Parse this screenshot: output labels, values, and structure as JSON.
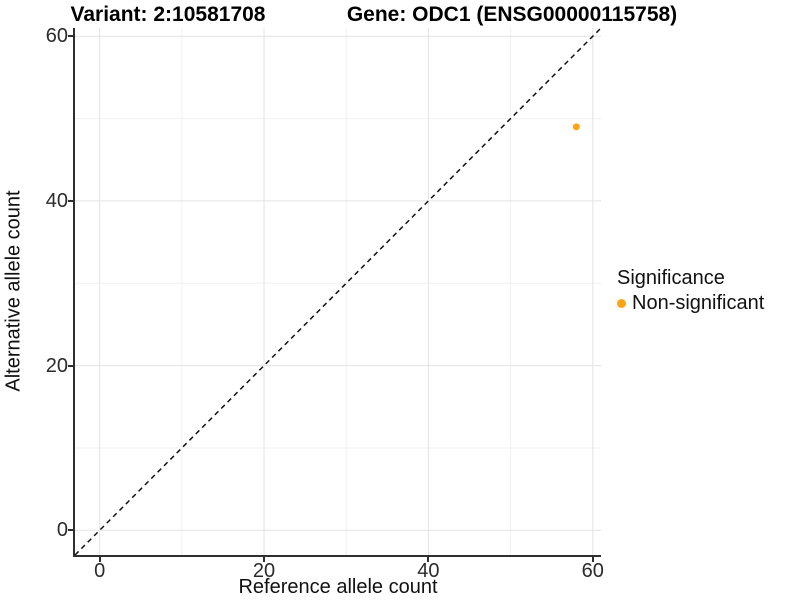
{
  "titles": {
    "variant": "Variant: 2:10581708",
    "gene": "Gene: ODC1 (ENSG00000115758)"
  },
  "axes": {
    "x_label": "Reference allele count",
    "y_label": "Alternative allele count"
  },
  "legend": {
    "title": "Significance",
    "items": [
      {
        "label": "Non-significant",
        "color": "#FFA412",
        "marker": "dot-icon"
      }
    ]
  },
  "colors": {
    "point_orange": "#FFA412",
    "axis_line": "#2f2f2f",
    "grid_major": "#e3e3e3",
    "grid_minor": "#f1f1f1",
    "reference_line": "#111111"
  },
  "chart_data": {
    "type": "scatter",
    "title": "Variant: 2:10581708 | Gene: ODC1 (ENSG00000115758)",
    "xlabel": "Reference allele count",
    "ylabel": "Alternative allele count",
    "xlim": [
      -3,
      61
    ],
    "ylim": [
      -3,
      61
    ],
    "x_ticks": [
      0,
      20,
      40,
      60
    ],
    "y_ticks": [
      0,
      20,
      40,
      60
    ],
    "x_minor_ticks": [
      10,
      30,
      50
    ],
    "y_minor_ticks": [
      10,
      30,
      50
    ],
    "grid": true,
    "legend_position": "right",
    "series": [
      {
        "name": "Non-significant",
        "color": "#FFA412",
        "marker_radius": 3.5,
        "points": [
          {
            "x": 58,
            "y": 49
          }
        ]
      }
    ],
    "reference_line": {
      "type": "identity y=x",
      "style": "dashed",
      "from": [
        -3,
        -3
      ],
      "to": [
        61,
        61
      ],
      "color": "#111111"
    }
  }
}
